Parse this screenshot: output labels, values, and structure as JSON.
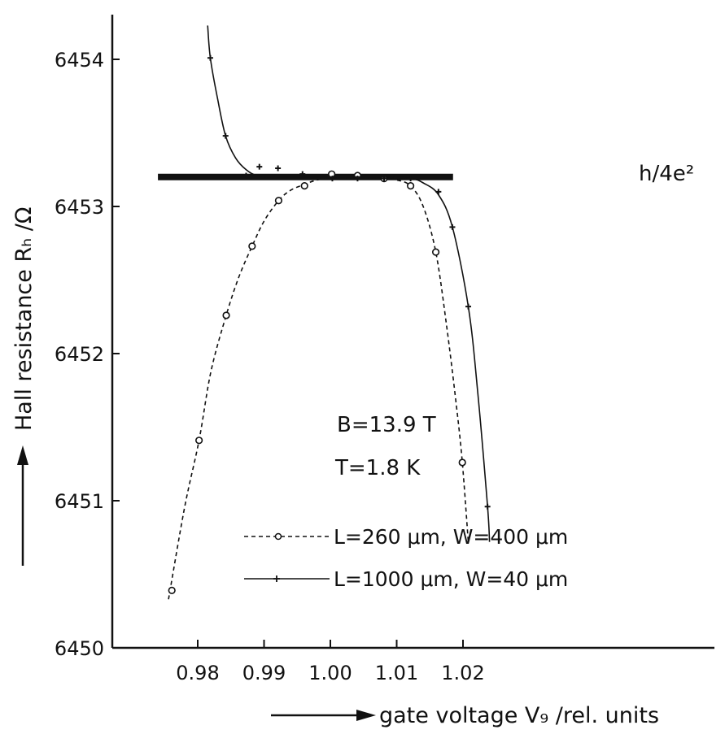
{
  "chart_data": {
    "type": "line",
    "xlabel": "gate voltage V₉ /rel. units",
    "ylabel": "Hall resistance Rₕ /Ω",
    "xlim": [
      0.974,
      1.028
    ],
    "ylim": [
      6450,
      6454.25
    ],
    "x_ticks": [
      {
        "value": 0.98,
        "label": "0.98"
      },
      {
        "value": 0.99,
        "label": "0.99"
      },
      {
        "value": 1.0,
        "label": "1.00"
      },
      {
        "value": 1.01,
        "label": "1.01"
      },
      {
        "value": 1.02,
        "label": "1.02"
      }
    ],
    "y_ticks": [
      {
        "value": 6450,
        "label": "6450"
      },
      {
        "value": 6451,
        "label": "6451"
      },
      {
        "value": 6452,
        "label": "6452"
      },
      {
        "value": 6453,
        "label": "6453"
      },
      {
        "value": 6454,
        "label": "6454"
      }
    ],
    "reference_line": {
      "label": "h/4e²",
      "y": 6453.2,
      "x_range": [
        0.974,
        1.0185
      ]
    },
    "annotations": [
      "B=13.9 T",
      "T=1.8 K"
    ],
    "series": [
      {
        "name": "L=260 μm, W=400 μm",
        "marker": "circle",
        "line_style": "dashed",
        "points": [
          [
            0.9761,
            6450.39
          ],
          [
            0.9802,
            6451.41
          ],
          [
            0.9843,
            6452.26
          ],
          [
            0.9882,
            6452.73
          ],
          [
            0.9922,
            6453.04
          ],
          [
            0.9961,
            6453.14
          ],
          [
            1.0002,
            6453.22
          ],
          [
            1.0041,
            6453.21
          ],
          [
            1.0081,
            6453.19
          ],
          [
            1.0121,
            6453.14
          ],
          [
            1.0159,
            6452.69
          ],
          [
            1.0199,
            6451.26
          ]
        ],
        "curve": [
          [
            0.9756,
            6450.33
          ],
          [
            0.978,
            6450.95
          ],
          [
            0.9802,
            6451.41
          ],
          [
            0.982,
            6451.88
          ],
          [
            0.9843,
            6452.26
          ],
          [
            0.9862,
            6452.52
          ],
          [
            0.9882,
            6452.73
          ],
          [
            0.99,
            6452.9
          ],
          [
            0.9922,
            6453.04
          ],
          [
            0.994,
            6453.11
          ],
          [
            0.9961,
            6453.15
          ],
          [
            0.998,
            6453.18
          ],
          [
            1.0,
            6453.19
          ],
          [
            1.004,
            6453.19
          ],
          [
            1.008,
            6453.19
          ],
          [
            1.01,
            6453.18
          ],
          [
            1.0121,
            6453.14
          ],
          [
            1.014,
            6453.0
          ],
          [
            1.0159,
            6452.69
          ],
          [
            1.0175,
            6452.2
          ],
          [
            1.019,
            6451.65
          ],
          [
            1.0199,
            6451.26
          ],
          [
            1.0208,
            6450.72
          ]
        ]
      },
      {
        "name": "L=1000 μm, W=40 μm",
        "marker": "plus",
        "line_style": "solid",
        "points": [
          [
            0.9819,
            6454.01
          ],
          [
            0.9842,
            6453.48
          ],
          [
            0.9873,
            6453.21
          ],
          [
            0.9893,
            6453.27
          ],
          [
            0.9921,
            6453.26
          ],
          [
            0.9958,
            6453.22
          ],
          [
            1.0003,
            6453.19
          ],
          [
            1.0041,
            6453.19
          ],
          [
            1.0081,
            6453.19
          ],
          [
            1.0121,
            6453.19
          ],
          [
            1.0163,
            6453.1
          ],
          [
            1.0184,
            6452.86
          ],
          [
            1.0208,
            6452.32
          ],
          [
            1.0237,
            6450.96
          ]
        ],
        "curve": [
          [
            0.9815,
            6454.23
          ],
          [
            0.9819,
            6454.01
          ],
          [
            0.983,
            6453.73
          ],
          [
            0.9842,
            6453.48
          ],
          [
            0.9857,
            6453.33
          ],
          [
            0.9873,
            6453.25
          ],
          [
            0.989,
            6453.21
          ],
          [
            0.992,
            6453.2
          ],
          [
            1.0,
            6453.2
          ],
          [
            1.008,
            6453.2
          ],
          [
            1.0121,
            6453.19
          ],
          [
            1.014,
            6453.16
          ],
          [
            1.0163,
            6453.08
          ],
          [
            1.0184,
            6452.86
          ],
          [
            1.0208,
            6452.32
          ],
          [
            1.0222,
            6451.75
          ],
          [
            1.0237,
            6450.96
          ],
          [
            1.024,
            6450.72
          ]
        ]
      }
    ]
  }
}
